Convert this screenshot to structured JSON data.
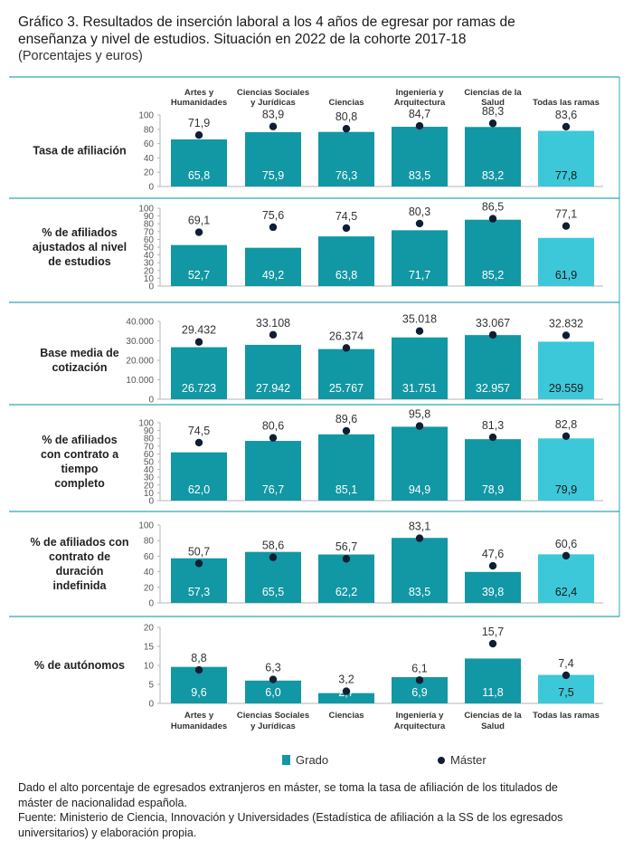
{
  "title": "Gráfico 3. Resultados de inserción laboral a los 4 años de egresar por ramas de enseñanza y nivel de estudios. Situación en 2022 de la cohorte 2017-18",
  "title_lines": [
    "Gráfico 3. Resultados de inserción laboral a los 4 años de egresar por ramas de",
    "enseñanza y nivel de estudios. Situación en 2022 de la cohorte 2017-18"
  ],
  "subtitle": "(Porcentajes y euros)",
  "legend": {
    "grado": "Grado",
    "master": "Máster"
  },
  "colors": {
    "grado": "#1297a4",
    "total": "#3cc8d8",
    "master": "#0f1e33",
    "divider": "#2fa8b8",
    "axis": "#b5b5b5"
  },
  "footnote_lines": [
    "Dado el alto porcentaje de egresados extranjeros en máster, se toma la tasa de afiliación de los titulados de",
    "máster de nacionalidad española.",
    "Fuente: Ministerio de Ciencia, Innovación y Universidades (Estadística de afiliación a la SS de los egresados",
    "universitarios) y elaboración propia."
  ],
  "category_lines": [
    [
      "Artes y",
      "Humanidades"
    ],
    [
      "Ciencias Sociales",
      "y Jurídicas"
    ],
    [
      "Ciencias"
    ],
    [
      "Ingeniería y",
      "Arquitectura"
    ],
    [
      "Ciencias de la",
      "Salud"
    ],
    [
      "Todas las ramas"
    ]
  ],
  "chart_data": [
    {
      "type": "bar",
      "panel_label": [
        "Tasa de afiliación"
      ],
      "categories": [
        "Artes y Humanidades",
        "Ciencias Sociales y Jurídicas",
        "Ciencias",
        "Ingeniería y Arquitectura",
        "Ciencias de la Salud",
        "Todas las ramas"
      ],
      "series": [
        {
          "name": "Grado",
          "values": [
            65.8,
            75.9,
            76.3,
            83.5,
            83.2,
            77.8
          ],
          "labels": [
            "65,8",
            "75,9",
            "76,3",
            "83,5",
            "83,2",
            "77,8"
          ]
        },
        {
          "name": "Máster",
          "values": [
            71.9,
            83.9,
            80.8,
            84.7,
            88.3,
            83.6
          ],
          "labels": [
            "71,9",
            "83,9",
            "80,8",
            "84,7",
            "88,3",
            "83,6"
          ]
        }
      ],
      "ylim": [
        0,
        100
      ],
      "yticks": [
        "0",
        "20",
        "40",
        "60",
        "80",
        "100"
      ]
    },
    {
      "type": "bar",
      "panel_label": [
        "% de afiliados",
        "ajustados al nivel",
        "de estudios"
      ],
      "categories": [
        "Artes y Humanidades",
        "Ciencias Sociales y Jurídicas",
        "Ciencias",
        "Ingeniería y Arquitectura",
        "Ciencias de la Salud",
        "Todas las ramas"
      ],
      "series": [
        {
          "name": "Grado",
          "values": [
            52.7,
            49.2,
            63.8,
            71.7,
            85.2,
            61.9
          ],
          "labels": [
            "52,7",
            "49,2",
            "63,8",
            "71,7",
            "85,2",
            "61,9"
          ]
        },
        {
          "name": "Máster",
          "values": [
            69.1,
            75.6,
            74.5,
            80.3,
            86.5,
            77.1
          ],
          "labels": [
            "69,1",
            "75,6",
            "74,5",
            "80,3",
            "86,5",
            "77,1"
          ]
        }
      ],
      "ylim": [
        0,
        100
      ],
      "yticks": [
        "0",
        "10",
        "20",
        "30",
        "40",
        "50",
        "60",
        "70",
        "80",
        "90",
        "100"
      ]
    },
    {
      "type": "bar",
      "panel_label": [
        "Base media de",
        "cotización"
      ],
      "categories": [
        "Artes y Humanidades",
        "Ciencias Sociales y Jurídicas",
        "Ciencias",
        "Ingeniería y Arquitectura",
        "Ciencias de la Salud",
        "Todas las ramas"
      ],
      "series": [
        {
          "name": "Grado",
          "values": [
            26723,
            27942,
            25767,
            31751,
            32957,
            29559
          ],
          "labels": [
            "26.723",
            "27.942",
            "25.767",
            "31.751",
            "32.957",
            "29.559"
          ]
        },
        {
          "name": "Máster",
          "values": [
            29432,
            33108,
            26374,
            35018,
            33067,
            32832
          ],
          "labels": [
            "29.432",
            "33.108",
            "26.374",
            "35.018",
            "33.067",
            "32.832"
          ]
        }
      ],
      "ylim": [
        0,
        40000
      ],
      "yticks": [
        "0",
        "10.000",
        "20.000",
        "30.000",
        "40.000"
      ]
    },
    {
      "type": "bar",
      "panel_label": [
        "% de afiliados",
        "con contrato a",
        "tiempo",
        "completo"
      ],
      "categories": [
        "Artes y Humanidades",
        "Ciencias Sociales y Jurídicas",
        "Ciencias",
        "Ingeniería y Arquitectura",
        "Ciencias de la Salud",
        "Todas las ramas"
      ],
      "series": [
        {
          "name": "Grado",
          "values": [
            62.0,
            76.7,
            85.1,
            94.9,
            78.9,
            79.9
          ],
          "labels": [
            "62,0",
            "76,7",
            "85,1",
            "94,9",
            "78,9",
            "79,9"
          ]
        },
        {
          "name": "Máster",
          "values": [
            74.5,
            80.6,
            89.6,
            95.8,
            81.3,
            82.8
          ],
          "labels": [
            "74,5",
            "80,6",
            "89,6",
            "95,8",
            "81,3",
            "82,8"
          ]
        }
      ],
      "ylim": [
        0,
        100
      ],
      "yticks": [
        "0",
        "10",
        "20",
        "30",
        "40",
        "50",
        "60",
        "70",
        "80",
        "90",
        "100"
      ]
    },
    {
      "type": "bar",
      "panel_label": [
        "% de afiliados con",
        "contrato de",
        "duración",
        "indefinida"
      ],
      "categories": [
        "Artes y Humanidades",
        "Ciencias Sociales y Jurídicas",
        "Ciencias",
        "Ingeniería y Arquitectura",
        "Ciencias de la Salud",
        "Todas las ramas"
      ],
      "series": [
        {
          "name": "Grado",
          "values": [
            57.3,
            65.5,
            62.2,
            83.5,
            39.8,
            62.4
          ],
          "labels": [
            "57,3",
            "65,5",
            "62,2",
            "83,5",
            "39,8",
            "62,4"
          ]
        },
        {
          "name": "Máster",
          "values": [
            50.7,
            58.6,
            56.7,
            83.1,
            47.6,
            60.6
          ],
          "labels": [
            "50,7",
            "58,6",
            "56,7",
            "83,1",
            "47,6",
            "60,6"
          ]
        }
      ],
      "ylim": [
        0,
        100
      ],
      "yticks": [
        "0",
        "20",
        "40",
        "60",
        "80",
        "100"
      ]
    },
    {
      "type": "bar",
      "panel_label": [
        "% de autónomos"
      ],
      "categories": [
        "Artes y Humanidades",
        "Ciencias Sociales y Jurídicas",
        "Ciencias",
        "Ingeniería y Arquitectura",
        "Ciencias de la Salud",
        "Todas las ramas"
      ],
      "series": [
        {
          "name": "Grado",
          "values": [
            9.6,
            6.0,
            2.7,
            6.9,
            11.8,
            7.5
          ],
          "labels": [
            "9,6",
            "6,0",
            "2,7",
            "6,9",
            "11,8",
            "7,5"
          ]
        },
        {
          "name": "Máster",
          "values": [
            8.8,
            6.3,
            3.2,
            6.1,
            15.7,
            7.4
          ],
          "labels": [
            "8,8",
            "6,3",
            "3,2",
            "6,1",
            "15,7",
            "7,4"
          ]
        }
      ],
      "ylim": [
        0,
        20
      ],
      "yticks": [
        "0",
        "5",
        "10",
        "15",
        "20"
      ]
    }
  ]
}
